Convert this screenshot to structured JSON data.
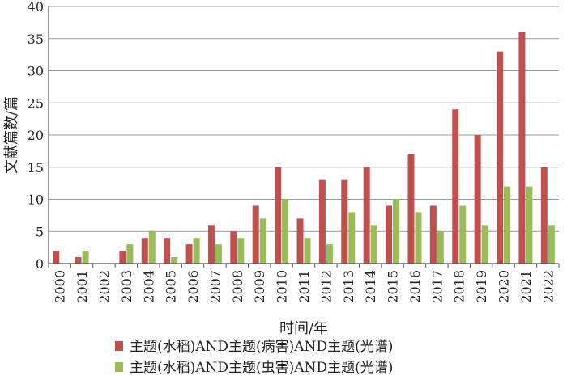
{
  "chart_data": {
    "type": "bar",
    "title": "",
    "xlabel": "时间/年",
    "ylabel": "文献篇数/篇",
    "ylim": [
      0,
      40
    ],
    "yticks": [
      0,
      5,
      10,
      15,
      20,
      25,
      30,
      35,
      40
    ],
    "grid": "horizontal",
    "legend_position": "bottom",
    "categories": [
      "2000",
      "2001",
      "2002",
      "2003",
      "2004",
      "2005",
      "2006",
      "2007",
      "2008",
      "2009",
      "2010",
      "2011",
      "2012",
      "2013",
      "2014",
      "2015",
      "2016",
      "2017",
      "2018",
      "2019",
      "2020",
      "2021",
      "2022"
    ],
    "series": [
      {
        "name": "主题(水稻)AND主题(病害)AND主题(光谱)",
        "color": "#c0504d",
        "values": [
          2,
          1,
          0,
          2,
          4,
          4,
          3,
          6,
          5,
          9,
          15,
          7,
          13,
          13,
          15,
          9,
          17,
          9,
          24,
          20,
          33,
          36,
          15
        ]
      },
      {
        "name": "主题(水稻)AND主题(虫害)AND主题(光谱)",
        "color": "#9bbb59",
        "values": [
          0,
          2,
          0,
          3,
          5,
          1,
          4,
          3,
          4,
          7,
          10,
          4,
          3,
          8,
          6,
          10,
          8,
          5,
          9,
          6,
          12,
          12,
          6
        ]
      }
    ]
  }
}
